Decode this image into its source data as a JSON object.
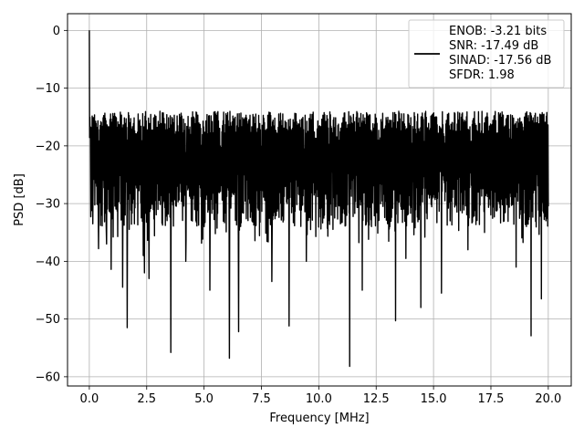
{
  "chart_data": {
    "type": "line",
    "title": "",
    "xlabel": "Frequency [MHz]",
    "ylabel": "PSD [dB]",
    "xlim": [
      -0.95,
      21.0
    ],
    "ylim": [
      -61.6,
      2.9
    ],
    "xticks": [
      0.0,
      2.5,
      5.0,
      7.5,
      10.0,
      12.5,
      15.0,
      17.5,
      20.0
    ],
    "xtick_labels": [
      "0.0",
      "2.5",
      "5.0",
      "7.5",
      "10.0",
      "12.5",
      "15.0",
      "17.5",
      "20.0"
    ],
    "yticks": [
      0,
      -10,
      -20,
      -30,
      -40,
      -50,
      -60
    ],
    "ytick_labels": [
      "0",
      "−10",
      "−20",
      "−30",
      "−40",
      "−50",
      "−60"
    ],
    "grid": true,
    "legend_position": "top-right",
    "legend_lines": [
      "ENOB: -3.21 bits",
      "SNR: -17.49 dB",
      "SINAD: -17.56 dB",
      "SFDR: 1.98"
    ],
    "series": [
      {
        "color": "#000000",
        "x_range": [
          0.0,
          20.0
        ],
        "n_points": 1600,
        "peak": {
          "x": 0.0,
          "y": 0.0
        },
        "upper_envelope_db": -14,
        "lower_envelope_db": -34,
        "spikes": [
          {
            "x": 0.15,
            "y": -33.5
          },
          {
            "x": 0.4,
            "y": -37.8
          },
          {
            "x": 0.75,
            "y": -37.0
          },
          {
            "x": 0.95,
            "y": -41.4
          },
          {
            "x": 1.45,
            "y": -44.5
          },
          {
            "x": 1.65,
            "y": -51.5
          },
          {
            "x": 2.35,
            "y": -39.0
          },
          {
            "x": 2.4,
            "y": -42.0
          },
          {
            "x": 2.6,
            "y": -43.0
          },
          {
            "x": 3.55,
            "y": -55.8
          },
          {
            "x": 4.2,
            "y": -40.0
          },
          {
            "x": 5.0,
            "y": -34.0
          },
          {
            "x": 5.25,
            "y": -45.0
          },
          {
            "x": 6.1,
            "y": -56.8
          },
          {
            "x": 6.5,
            "y": -52.2
          },
          {
            "x": 7.95,
            "y": -43.5
          },
          {
            "x": 8.7,
            "y": -51.2
          },
          {
            "x": 9.45,
            "y": -40.0
          },
          {
            "x": 11.35,
            "y": -58.2
          },
          {
            "x": 11.9,
            "y": -45.0
          },
          {
            "x": 13.35,
            "y": -50.3
          },
          {
            "x": 13.8,
            "y": -39.5
          },
          {
            "x": 14.45,
            "y": -48.0
          },
          {
            "x": 15.35,
            "y": -45.5
          },
          {
            "x": 16.5,
            "y": -38.0
          },
          {
            "x": 18.6,
            "y": -41.0
          },
          {
            "x": 19.25,
            "y": -52.9
          },
          {
            "x": 19.7,
            "y": -46.5
          }
        ]
      }
    ]
  }
}
